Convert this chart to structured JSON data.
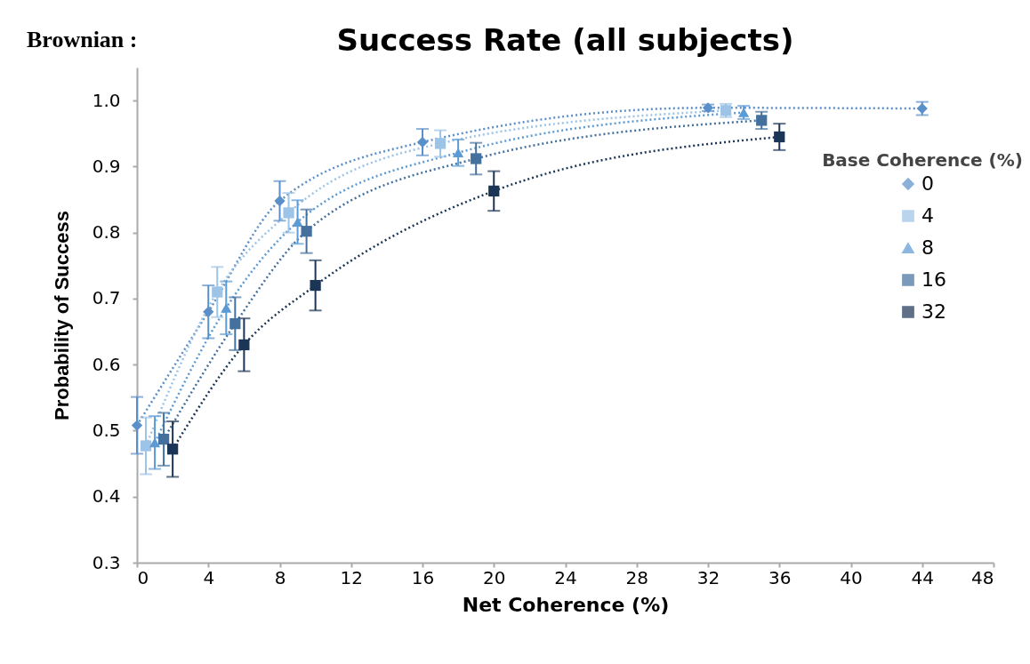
{
  "chart_data": {
    "type": "line",
    "title": "Success Rate (all subjects)",
    "annotations": [
      "Brownian :"
    ],
    "xlabel": "Net Coherence (%)",
    "ylabel": "Probability of Success",
    "legend_title": "Base Coherence (%)",
    "legend": "right",
    "grid": false,
    "line_style": "dotted",
    "xlim": [
      0,
      48
    ],
    "xticks": [
      0,
      4,
      8,
      12,
      16,
      20,
      24,
      28,
      32,
      36,
      40,
      44,
      48
    ],
    "ylim": [
      0.3,
      1.05
    ],
    "yticks": [
      {
        "value": 0.3,
        "label": "0.3"
      },
      {
        "value": 0.4,
        "label": "0.4"
      },
      {
        "value": 0.5,
        "label": "0.5"
      },
      {
        "value": 0.6,
        "label": "0.6"
      },
      {
        "value": 0.7,
        "label": "0.7"
      },
      {
        "value": 0.8,
        "label": "0.8"
      },
      {
        "value": 0.9,
        "label": "0.9"
      },
      {
        "value": 1.0,
        "label": "1.0"
      }
    ],
    "series": [
      {
        "name": "0",
        "color": "#5b8fc9",
        "marker": "diamond",
        "x": [
          0,
          4,
          8,
          16,
          32,
          44
        ],
        "values": [
          0.508,
          0.68,
          0.848,
          0.937,
          0.989,
          0.988
        ],
        "errors": [
          0.043,
          0.04,
          0.03,
          0.02,
          0.005,
          0.01
        ]
      },
      {
        "name": "4",
        "color": "#9dc3e6",
        "marker": "square",
        "x": [
          0.5,
          4.5,
          8.5,
          17,
          33
        ],
        "values": [
          0.477,
          0.71,
          0.83,
          0.935,
          0.985
        ],
        "errors": [
          0.043,
          0.038,
          0.03,
          0.02,
          0.01
        ]
      },
      {
        "name": "8",
        "color": "#5b9bd5",
        "marker": "triangle",
        "x": [
          1,
          5,
          9,
          18,
          34
        ],
        "values": [
          0.482,
          0.686,
          0.816,
          0.921,
          0.982
        ],
        "errors": [
          0.04,
          0.04,
          0.033,
          0.02,
          0.01
        ]
      },
      {
        "name": "16",
        "color": "#44709d",
        "marker": "square",
        "x": [
          1.5,
          5.5,
          9.5,
          19,
          35
        ],
        "values": [
          0.487,
          0.662,
          0.802,
          0.912,
          0.97
        ],
        "errors": [
          0.04,
          0.04,
          0.033,
          0.024,
          0.013
        ]
      },
      {
        "name": "32",
        "color": "#1b3556",
        "marker": "square",
        "x": [
          2,
          6,
          10,
          20,
          36
        ],
        "values": [
          0.472,
          0.63,
          0.72,
          0.863,
          0.945
        ],
        "errors": [
          0.042,
          0.04,
          0.038,
          0.03,
          0.02
        ]
      }
    ]
  }
}
